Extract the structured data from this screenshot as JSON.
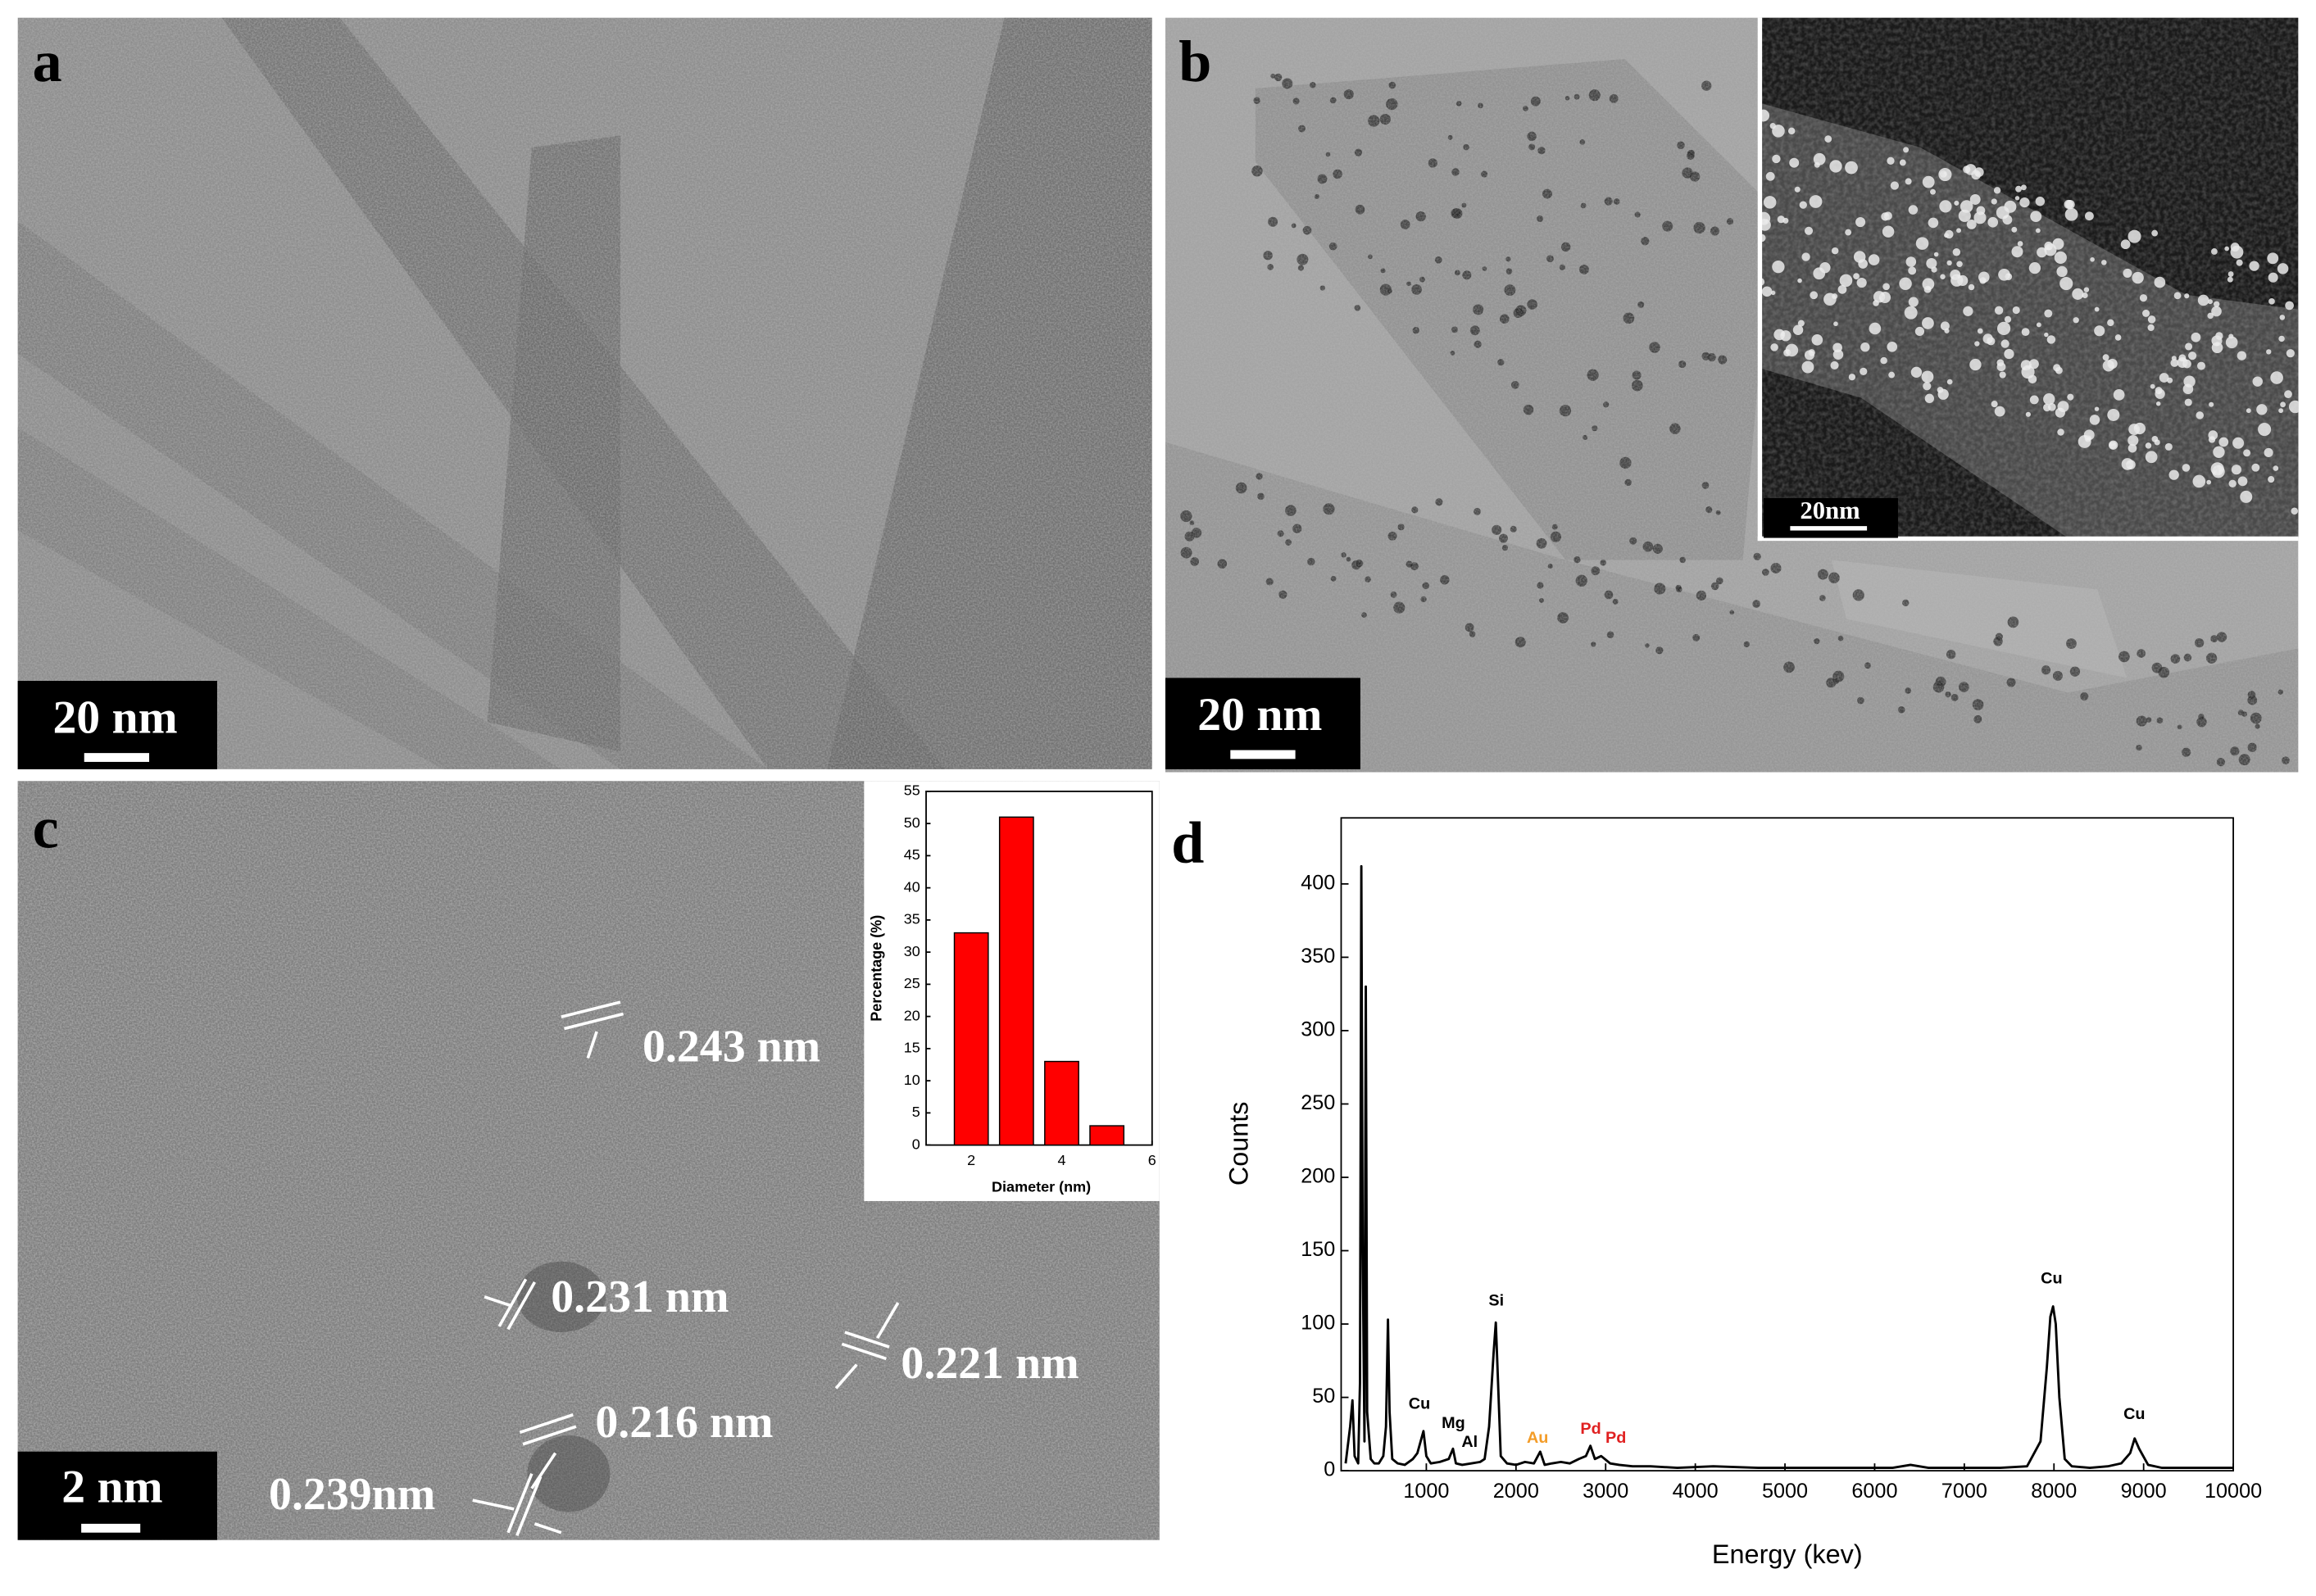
{
  "panels": {
    "a": {
      "label": "a",
      "scale_bar": "20 nm"
    },
    "b": {
      "label": "b",
      "scale_bar": "20 nm",
      "inset_scale_bar": "20nm"
    },
    "c": {
      "label": "c",
      "scale_bar": "2 nm",
      "d_spacings": [
        "0.243 nm",
        "0.231 nm",
        "0.221 nm",
        "0.216 nm",
        "0.239nm"
      ]
    },
    "d": {
      "label": "d"
    }
  },
  "chart_data": [
    {
      "type": "bar",
      "xlabel": "Diameter (nm)",
      "ylabel": "Percentage (%)",
      "x": [
        2,
        3,
        4,
        5
      ],
      "values": [
        33,
        51,
        13,
        3
      ],
      "color": "#ff0000",
      "xlim": [
        1,
        6
      ],
      "xticks": [
        2,
        4,
        6
      ],
      "ylim": [
        0,
        55
      ],
      "yticks": [
        0,
        5,
        10,
        15,
        20,
        25,
        30,
        35,
        40,
        45,
        50,
        55
      ]
    },
    {
      "type": "line",
      "xlabel": "Energy (kev)",
      "ylabel": "Counts",
      "color": "#000000",
      "x": [
        100,
        150,
        176,
        200,
        240,
        260,
        275,
        290,
        310,
        325,
        340,
        380,
        420,
        470,
        520,
        550,
        572,
        590,
        620,
        680,
        760,
        850,
        900,
        968,
        1000,
        1050,
        1150,
        1250,
        1297,
        1330,
        1400,
        1500,
        1600,
        1650,
        1700,
        1750,
        1775,
        1800,
        1830,
        1900,
        2000,
        2100,
        2200,
        2270,
        2320,
        2400,
        2500,
        2600,
        2700,
        2780,
        2830,
        2880,
        2950,
        3050,
        3150,
        3300,
        3500,
        3800,
        4200,
        4700,
        5200,
        5700,
        6200,
        6400,
        6600,
        7000,
        7400,
        7700,
        7850,
        7920,
        7960,
        7990,
        8020,
        8060,
        8120,
        8200,
        8400,
        8600,
        8750,
        8850,
        8900,
        8950,
        9050,
        9200,
        9500,
        10000
      ],
      "values": [
        5,
        30,
        48,
        10,
        5,
        60,
        412,
        150,
        20,
        330,
        40,
        8,
        5,
        5,
        10,
        30,
        103,
        40,
        8,
        5,
        4,
        8,
        12,
        27,
        10,
        5,
        6,
        8,
        15,
        5,
        4,
        5,
        6,
        8,
        30,
        80,
        101,
        60,
        10,
        5,
        4,
        6,
        5,
        13,
        4,
        5,
        6,
        5,
        8,
        10,
        17,
        8,
        10,
        5,
        4,
        3,
        3,
        2,
        3,
        2,
        2,
        2,
        2,
        4,
        2,
        2,
        2,
        3,
        20,
        70,
        105,
        112,
        100,
        50,
        8,
        3,
        2,
        3,
        5,
        12,
        22,
        15,
        4,
        2,
        2,
        2
      ],
      "xlim": [
        50,
        10000
      ],
      "xticks": [
        1000,
        2000,
        3000,
        4000,
        5000,
        6000,
        7000,
        8000,
        9000,
        10000
      ],
      "ylim": [
        0,
        445
      ],
      "yticks": [
        0,
        50,
        100,
        150,
        200,
        250,
        300,
        350,
        400
      ],
      "peak_labels": [
        {
          "text": "Cu",
          "color": "#000000"
        },
        {
          "text": "Mg",
          "color": "#000000"
        },
        {
          "text": "Al",
          "color": "#000000"
        },
        {
          "text": "Au",
          "color": "#f39c28"
        },
        {
          "text": "Pd",
          "color": "#e02020"
        },
        {
          "text": "Pd",
          "color": "#e02020"
        },
        {
          "text": "Si",
          "color": "#000000"
        },
        {
          "text": "Cu",
          "color": "#000000"
        },
        {
          "text": "Cu",
          "color": "#000000"
        }
      ]
    }
  ]
}
